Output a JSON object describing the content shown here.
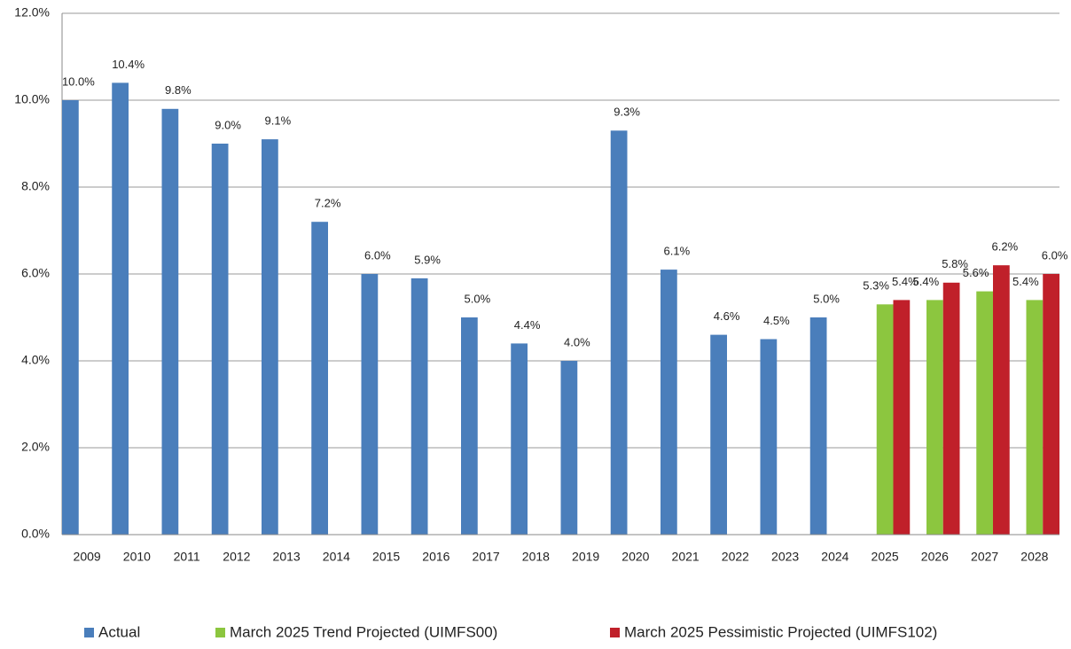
{
  "chart_data": {
    "type": "bar",
    "categories": [
      "2009",
      "2010",
      "2011",
      "2012",
      "2013",
      "2014",
      "2015",
      "2016",
      "2017",
      "2018",
      "2019",
      "2020",
      "2021",
      "2022",
      "2023",
      "2024",
      "2025",
      "2026",
      "2027",
      "2028"
    ],
    "series": [
      {
        "name": "Actual",
        "color": "#4a7ebb",
        "values": [
          10.0,
          10.4,
          9.8,
          9.0,
          9.1,
          7.2,
          6.0,
          5.9,
          5.0,
          4.4,
          4.0,
          9.3,
          6.1,
          4.6,
          4.5,
          5.0,
          null,
          null,
          null,
          null
        ],
        "value_labels": [
          "10.0%",
          "10.4%",
          "9.8%",
          "9.0%",
          "9.1%",
          "7.2%",
          "6.0%",
          "5.9%",
          "5.0%",
          "4.4%",
          "4.0%",
          "9.3%",
          "6.1%",
          "4.6%",
          "4.5%",
          "5.0%",
          null,
          null,
          null,
          null
        ]
      },
      {
        "name": "March 2025 Trend Projected (UIMFS00)",
        "color": "#8cc63f",
        "values": [
          null,
          null,
          null,
          null,
          null,
          null,
          null,
          null,
          null,
          null,
          null,
          null,
          null,
          null,
          null,
          null,
          5.3,
          5.4,
          5.6,
          5.4
        ],
        "value_labels": [
          null,
          null,
          null,
          null,
          null,
          null,
          null,
          null,
          null,
          null,
          null,
          null,
          null,
          null,
          null,
          null,
          "5.3%",
          "5.4%",
          "5.6%",
          "5.4%"
        ]
      },
      {
        "name": "March 2025 Pessimistic Projected (UIMFS102)",
        "color": "#c0202a",
        "values": [
          null,
          null,
          null,
          null,
          null,
          null,
          null,
          null,
          null,
          null,
          null,
          null,
          null,
          null,
          null,
          null,
          5.4,
          5.8,
          6.2,
          6.0
        ],
        "value_labels": [
          null,
          null,
          null,
          null,
          null,
          null,
          null,
          null,
          null,
          null,
          null,
          null,
          null,
          null,
          null,
          null,
          "5.4%",
          "5.8%",
          "6.2%",
          "6.0%"
        ]
      }
    ],
    "ylim": [
      0,
      12
    ],
    "yticks": [
      {
        "value": 0,
        "label": "0.0%"
      },
      {
        "value": 2,
        "label": "2.0%"
      },
      {
        "value": 4,
        "label": "4.0%"
      },
      {
        "value": 6,
        "label": "6.0%"
      },
      {
        "value": 8,
        "label": "8.0%"
      },
      {
        "value": 10,
        "label": "10.0%"
      },
      {
        "value": 12,
        "label": "12.0%"
      }
    ],
    "grid": true,
    "legend": "bottom"
  }
}
